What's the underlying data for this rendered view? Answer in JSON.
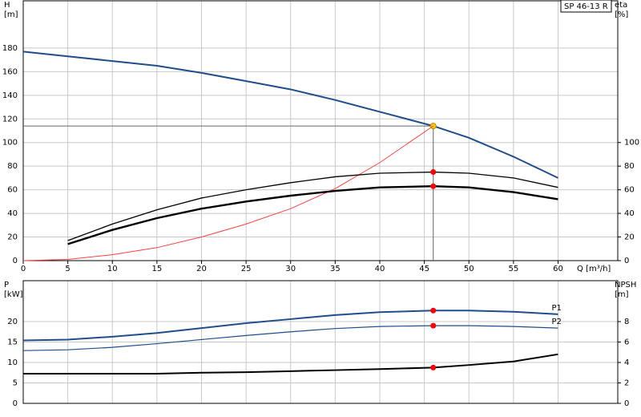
{
  "chart_data": [
    {
      "type": "line",
      "title": "SP 46-13 R",
      "y_label": [
        "H",
        "[m]"
      ],
      "y2_label": [
        "eta",
        "[%]"
      ],
      "x_label": "Q [m³/h]",
      "xlim": [
        0,
        66.7
      ],
      "xticks": [
        0,
        5,
        10,
        15,
        20,
        25,
        30,
        35,
        40,
        45,
        50,
        55,
        60
      ],
      "ylim": [
        0,
        220
      ],
      "yticks": [
        0,
        20,
        40,
        60,
        80,
        100,
        120,
        140,
        160,
        180
      ],
      "y2lim": [
        0,
        220
      ],
      "y2ticks": [
        0,
        20,
        40,
        60,
        80,
        100
      ],
      "grid": true,
      "duty_point": {
        "q": 46,
        "h": 114
      },
      "series": [
        {
          "color": "#1f4e8c",
          "width": 2,
          "marker": "#ffcc00",
          "x": [
            0,
            5,
            10,
            15,
            20,
            25,
            30,
            35,
            40,
            46,
            50,
            55,
            60
          ],
          "values": [
            177,
            173,
            169,
            165,
            159,
            152,
            145,
            136,
            126,
            114,
            104,
            88,
            70
          ]
        },
        {
          "color": "#ff4040",
          "width": 1,
          "x": [
            0,
            5,
            10,
            15,
            20,
            25,
            30,
            35,
            40,
            46
          ],
          "values": [
            0,
            1,
            5,
            11,
            20,
            31,
            44,
            61,
            83,
            114
          ]
        },
        {
          "color": "#000000",
          "width": 1.3,
          "axis": "y2",
          "marker": "#ff0000",
          "x": [
            5,
            10,
            15,
            20,
            25,
            30,
            35,
            40,
            46,
            50,
            55,
            60
          ],
          "values": [
            17,
            31,
            43,
            53,
            60,
            66,
            71,
            74,
            75,
            74,
            70,
            62
          ]
        },
        {
          "color": "#000000",
          "width": 2.4,
          "axis": "y2",
          "marker": "#ff0000",
          "x": [
            5,
            10,
            15,
            20,
            25,
            30,
            35,
            40,
            46,
            50,
            55,
            60
          ],
          "values": [
            14,
            26,
            36,
            44,
            50,
            55,
            59,
            62,
            63,
            62,
            58,
            52
          ]
        }
      ]
    },
    {
      "type": "line",
      "y_label": [
        "P",
        "[kW]"
      ],
      "y2_label": [
        "NPSH",
        "[m]"
      ],
      "xlim": [
        0,
        66.7
      ],
      "ylim": [
        0,
        30
      ],
      "yticks": [
        0,
        5,
        10,
        15,
        20
      ],
      "y2lim": [
        0,
        12
      ],
      "y2ticks": [
        0,
        2,
        4,
        6,
        8
      ],
      "grid": true,
      "series": [
        {
          "name": "P1",
          "color": "#1f4e8c",
          "width": 2,
          "marker": "#ff0000",
          "x": [
            0,
            5,
            10,
            15,
            20,
            25,
            30,
            35,
            40,
            46,
            50,
            55,
            60
          ],
          "values": [
            15.4,
            15.6,
            16.3,
            17.2,
            18.4,
            19.6,
            20.6,
            21.6,
            22.3,
            22.7,
            22.7,
            22.4,
            21.8
          ]
        },
        {
          "name": "P2",
          "color": "#1f4e8c",
          "width": 1.2,
          "marker": "#ff0000",
          "x": [
            0,
            5,
            10,
            15,
            20,
            25,
            30,
            35,
            40,
            46,
            50,
            55,
            60
          ],
          "values": [
            12.9,
            13.1,
            13.7,
            14.6,
            15.6,
            16.6,
            17.5,
            18.3,
            18.8,
            19.0,
            19.0,
            18.8,
            18.4
          ]
        },
        {
          "color": "#000000",
          "width": 2,
          "axis": "y2",
          "marker": "#ff0000",
          "x": [
            0,
            5,
            10,
            15,
            20,
            25,
            30,
            35,
            40,
            46,
            50,
            55,
            60
          ],
          "values": [
            2.9,
            2.9,
            2.9,
            2.9,
            3.0,
            3.05,
            3.15,
            3.25,
            3.35,
            3.5,
            3.75,
            4.1,
            4.8
          ]
        }
      ]
    }
  ]
}
